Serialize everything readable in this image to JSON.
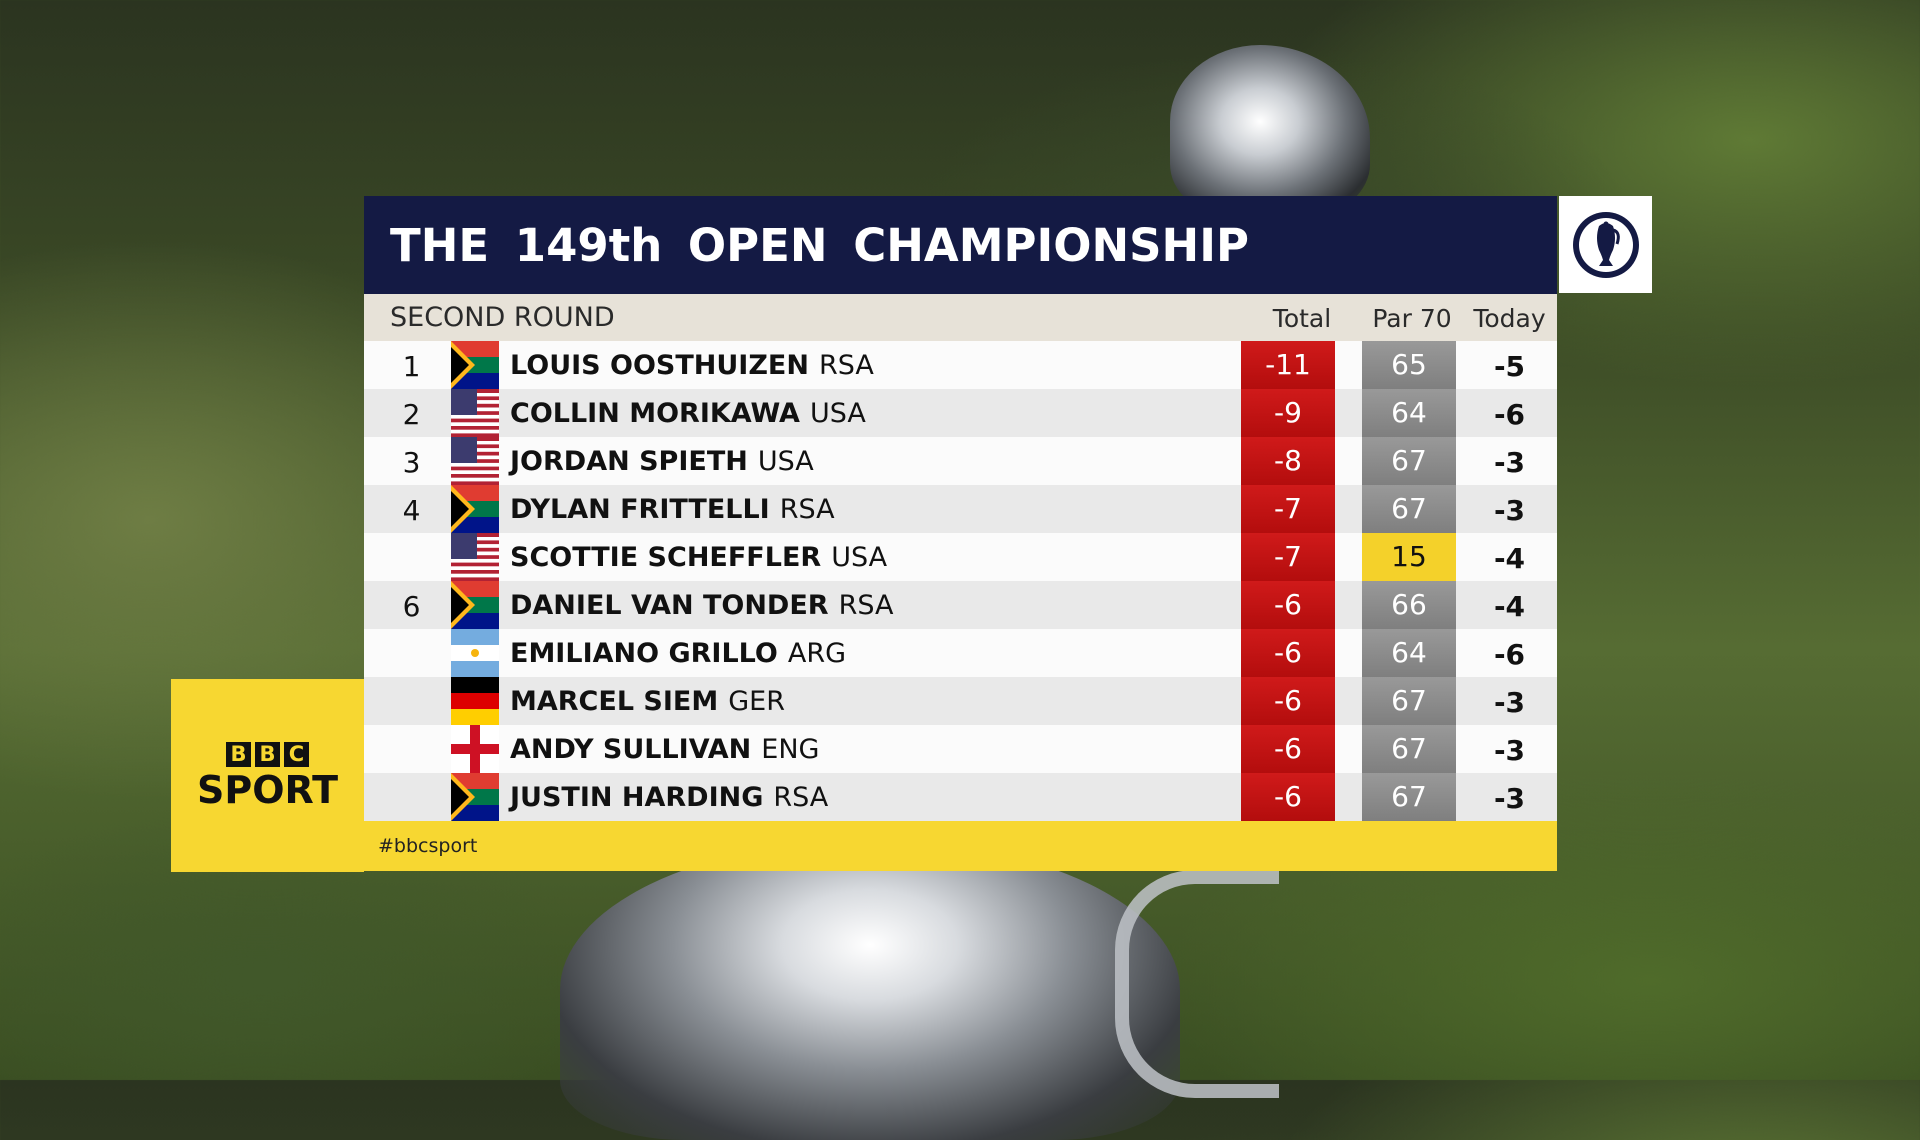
{
  "header": {
    "title": "THE 149th OPEN CHAMPIONSHIP",
    "round": "SECOND ROUND",
    "col_total": "Total",
    "col_par": "Par 70",
    "col_today": "Today"
  },
  "branding": {
    "bbc_letters": [
      "B",
      "B",
      "C"
    ],
    "sport": "SPORT",
    "hashtag": "#bbcsport"
  },
  "colors": {
    "title_bg": "#141a44",
    "total_red": "#c41414",
    "par_grey": "#8a8a8a",
    "live_yellow": "#f4d12a",
    "bbc_yellow": "#f7d731"
  },
  "leaderboard": [
    {
      "pos": "1",
      "flag": "south-africa-flag",
      "name": "LOUIS OOSTHUIZEN",
      "nat": "RSA",
      "total": "-11",
      "thru": "65",
      "today": "-5",
      "live": false
    },
    {
      "pos": "2",
      "flag": "usa-flag",
      "name": "COLLIN MORIKAWA",
      "nat": "USA",
      "total": "-9",
      "thru": "64",
      "today": "-6",
      "live": false
    },
    {
      "pos": "3",
      "flag": "usa-flag",
      "name": "JORDAN SPIETH",
      "nat": "USA",
      "total": "-8",
      "thru": "67",
      "today": "-3",
      "live": false
    },
    {
      "pos": "4",
      "flag": "south-africa-flag",
      "name": "DYLAN FRITTELLI",
      "nat": "RSA",
      "total": "-7",
      "thru": "67",
      "today": "-3",
      "live": false
    },
    {
      "pos": "",
      "flag": "usa-flag",
      "name": "SCOTTIE SCHEFFLER",
      "nat": "USA",
      "total": "-7",
      "thru": "15",
      "today": "-4",
      "live": true
    },
    {
      "pos": "6",
      "flag": "south-africa-flag",
      "name": "DANIEL VAN TONDER",
      "nat": "RSA",
      "total": "-6",
      "thru": "66",
      "today": "-4",
      "live": false
    },
    {
      "pos": "",
      "flag": "argentina-flag",
      "name": "EMILIANO GRILLO",
      "nat": "ARG",
      "total": "-6",
      "thru": "64",
      "today": "-6",
      "live": false
    },
    {
      "pos": "",
      "flag": "germany-flag",
      "name": "MARCEL SIEM",
      "nat": "GER",
      "total": "-6",
      "thru": "67",
      "today": "-3",
      "live": false
    },
    {
      "pos": "",
      "flag": "england-flag",
      "name": "ANDY SULLIVAN",
      "nat": "ENG",
      "total": "-6",
      "thru": "67",
      "today": "-3",
      "live": false
    },
    {
      "pos": "",
      "flag": "south-africa-flag",
      "name": "JUSTIN HARDING",
      "nat": "RSA",
      "total": "-6",
      "thru": "67",
      "today": "-3",
      "live": false
    }
  ]
}
